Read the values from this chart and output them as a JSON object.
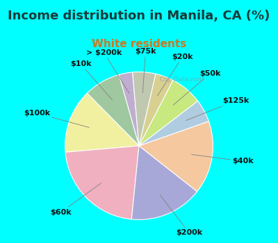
{
  "title": "Income distribution in Manila, CA (%)",
  "subtitle": "White residents",
  "background_color": "#00ffff",
  "chart_bg_start": "#e8f5e8",
  "title_color": "#1a3a3a",
  "title_fontsize": 13,
  "subtitle_fontsize": 11,
  "subtitle_color": "#cc7722",
  "watermark": "© City-Data.com",
  "labels": [
    "> $200k",
    "$10k",
    "$100k",
    "$60k",
    "$200k",
    "$40k",
    "$125k",
    "$50k",
    "$20k",
    "$75k"
  ],
  "values": [
    3,
    8,
    14,
    22,
    16,
    16,
    5,
    7,
    4,
    5
  ],
  "colors": [
    "#c0aed0",
    "#a0c8a0",
    "#f0f0a0",
    "#f0b0c0",
    "#a8a8d8",
    "#f5c8a0",
    "#b0cce0",
    "#c8e880",
    "#d8d090",
    "#c0c8b0"
  ],
  "startangle": 95,
  "label_fontsize": 8,
  "label_color": "#111111"
}
